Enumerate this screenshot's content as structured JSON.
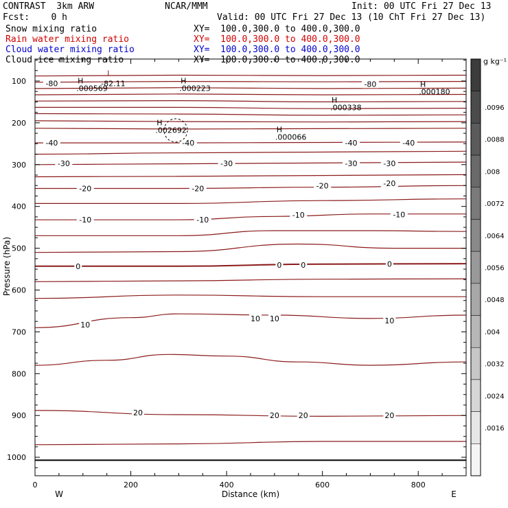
{
  "header": {
    "model": "CONTRAST  3km ARW",
    "center": "NCAR/MMM",
    "init": "Init: 00 UTC Fri 27 Dec 13",
    "fcst": "Fcst:    0 h",
    "valid": "Valid: 00 UTC Fri 27 Dec 13 (10 ChT Fri 27 Dec 13)",
    "fields": [
      {
        "name": "Snow mixing ratio",
        "xy": "XY=  100.0,300.0 to 400.0,300.0",
        "color": "#000000"
      },
      {
        "name": "Rain water mixing ratio",
        "xy": "XY=  100.0,300.0 to 400.0,300.0",
        "color": "#d00000"
      },
      {
        "name": "Cloud water mixing ratio",
        "xy": "XY=  100.0,300.0 to 400.0,300.0",
        "color": "#0000cc"
      },
      {
        "name": "Cloud ice mixing ratio",
        "xy": "XY=  100.0,300.0 to 400.0,300.0",
        "color": "#000000"
      }
    ]
  },
  "chart_data": {
    "type": "line",
    "xlabel": "Distance (km)",
    "ylabel": "Pressure (hPa)",
    "xlim": [
      0,
      900
    ],
    "ylim": [
      1050,
      50
    ],
    "xticks": [
      0,
      200,
      400,
      600,
      800
    ],
    "yticks": [
      100,
      200,
      300,
      400,
      500,
      600,
      700,
      800,
      900,
      1000
    ],
    "side_labels": {
      "left": "W",
      "right": "E"
    },
    "contour_color": "#8b1a1a",
    "colorbar": {
      "unit": "g kg⁻¹",
      "labels": [
        ".0096",
        ".0088",
        ".008",
        ".0072",
        ".0064",
        ".0056",
        ".0048",
        ".004",
        ".0032",
        ".0024",
        ".0016"
      ]
    },
    "contours": [
      {
        "pts": [
          [
            0,
            88
          ],
          [
            300,
            86
          ],
          [
            600,
            87
          ],
          [
            900,
            86
          ]
        ]
      },
      {
        "pts": [
          [
            0,
            103
          ],
          [
            300,
            101
          ],
          [
            600,
            102
          ],
          [
            900,
            101
          ]
        ]
      },
      {
        "pts": [
          [
            0,
            118
          ],
          [
            300,
            116
          ],
          [
            600,
            118
          ],
          [
            900,
            117
          ]
        ]
      },
      {
        "pts": [
          [
            0,
            133
          ],
          [
            300,
            131
          ],
          [
            600,
            133
          ],
          [
            900,
            132
          ]
        ]
      },
      {
        "pts": [
          [
            0,
            148
          ],
          [
            300,
            147
          ],
          [
            600,
            150
          ],
          [
            900,
            149
          ]
        ]
      },
      {
        "pts": [
          [
            0,
            163
          ],
          [
            300,
            163
          ],
          [
            600,
            166
          ],
          [
            900,
            165
          ]
        ]
      },
      {
        "pts": [
          [
            0,
            178
          ],
          [
            300,
            179
          ],
          [
            600,
            182
          ],
          [
            900,
            181
          ]
        ]
      },
      {
        "pts": [
          [
            0,
            195
          ],
          [
            300,
            197
          ],
          [
            600,
            198
          ],
          [
            900,
            197
          ]
        ]
      },
      {
        "pts": [
          [
            0,
            213
          ],
          [
            300,
            215
          ],
          [
            600,
            214
          ],
          [
            900,
            213
          ]
        ]
      },
      {
        "pts": [
          [
            0,
            248
          ],
          [
            300,
            248
          ],
          [
            600,
            247
          ],
          [
            900,
            246
          ]
        ]
      },
      {
        "pts": [
          [
            0,
            275
          ],
          [
            300,
            272
          ],
          [
            600,
            270
          ],
          [
            900,
            268
          ]
        ]
      },
      {
        "pts": [
          [
            0,
            300
          ],
          [
            300,
            298
          ],
          [
            600,
            296
          ],
          [
            900,
            294
          ]
        ]
      },
      {
        "pts": [
          [
            0,
            329
          ],
          [
            300,
            328
          ],
          [
            600,
            326
          ],
          [
            900,
            324
          ]
        ]
      },
      {
        "pts": [
          [
            0,
            357
          ],
          [
            300,
            357
          ],
          [
            600,
            354
          ],
          [
            900,
            350
          ]
        ]
      },
      {
        "pts": [
          [
            0,
            393
          ],
          [
            300,
            393
          ],
          [
            600,
            386
          ],
          [
            900,
            382
          ]
        ]
      },
      {
        "pts": [
          [
            0,
            432
          ],
          [
            300,
            432
          ],
          [
            500,
            424
          ],
          [
            700,
            418
          ],
          [
            900,
            418
          ]
        ]
      },
      {
        "pts": [
          [
            0,
            470
          ],
          [
            300,
            470
          ],
          [
            500,
            458
          ],
          [
            700,
            458
          ],
          [
            900,
            460
          ]
        ]
      },
      {
        "pts": [
          [
            0,
            510
          ],
          [
            300,
            508
          ],
          [
            550,
            490
          ],
          [
            750,
            500
          ],
          [
            900,
            500
          ]
        ]
      },
      {
        "pts": [
          [
            0,
            543
          ],
          [
            300,
            543
          ],
          [
            600,
            538
          ],
          [
            900,
            537
          ]
        ],
        "bold": true
      },
      {
        "pts": [
          [
            0,
            580
          ],
          [
            300,
            578
          ],
          [
            600,
            574
          ],
          [
            900,
            573
          ]
        ]
      },
      {
        "pts": [
          [
            0,
            620
          ],
          [
            300,
            612
          ],
          [
            600,
            616
          ],
          [
            900,
            616
          ]
        ]
      },
      {
        "pts": [
          [
            0,
            690
          ],
          [
            200,
            666
          ],
          [
            300,
            657
          ],
          [
            500,
            660
          ],
          [
            700,
            668
          ],
          [
            900,
            660
          ]
        ]
      },
      {
        "pts": [
          [
            0,
            780
          ],
          [
            150,
            768
          ],
          [
            280,
            754
          ],
          [
            400,
            758
          ],
          [
            550,
            772
          ],
          [
            700,
            780
          ],
          [
            900,
            772
          ]
        ]
      },
      {
        "pts": [
          [
            0,
            888
          ],
          [
            300,
            898
          ],
          [
            600,
            902
          ],
          [
            900,
            900
          ]
        ]
      },
      {
        "pts": [
          [
            0,
            970
          ],
          [
            300,
            968
          ],
          [
            600,
            962
          ],
          [
            900,
            962
          ]
        ]
      },
      {
        "pts": [
          [
            0,
            1007
          ],
          [
            900,
            1007
          ]
        ],
        "bold": true,
        "black": true
      }
    ],
    "contour_labels": [
      {
        "x": 35,
        "p": 106,
        "text": "-80"
      },
      {
        "x": 700,
        "p": 107,
        "text": "-80"
      },
      {
        "x": 35,
        "p": 248,
        "text": "-40"
      },
      {
        "x": 320,
        "p": 248,
        "text": "-40"
      },
      {
        "x": 660,
        "p": 248,
        "text": "-40"
      },
      {
        "x": 780,
        "p": 248,
        "text": "-40"
      },
      {
        "x": 60,
        "p": 297,
        "text": "-30"
      },
      {
        "x": 400,
        "p": 297,
        "text": "-30"
      },
      {
        "x": 660,
        "p": 297,
        "text": "-30"
      },
      {
        "x": 740,
        "p": 297,
        "text": "-30"
      },
      {
        "x": 105,
        "p": 357,
        "text": "-20"
      },
      {
        "x": 340,
        "p": 357,
        "text": "-20"
      },
      {
        "x": 600,
        "p": 350,
        "text": "-20"
      },
      {
        "x": 740,
        "p": 345,
        "text": "-20"
      },
      {
        "x": 105,
        "p": 432,
        "text": "-10"
      },
      {
        "x": 350,
        "p": 432,
        "text": "-10"
      },
      {
        "x": 550,
        "p": 420,
        "text": "-10"
      },
      {
        "x": 760,
        "p": 419,
        "text": "-10"
      },
      {
        "x": 90,
        "p": 543,
        "text": "0"
      },
      {
        "x": 510,
        "p": 540,
        "text": "0"
      },
      {
        "x": 560,
        "p": 540,
        "text": "0"
      },
      {
        "x": 740,
        "p": 538,
        "text": "0"
      },
      {
        "x": 105,
        "p": 683,
        "text": "10"
      },
      {
        "x": 460,
        "p": 668,
        "text": "10"
      },
      {
        "x": 500,
        "p": 668,
        "text": "10"
      },
      {
        "x": 740,
        "p": 673,
        "text": "10"
      },
      {
        "x": 215,
        "p": 893,
        "text": "20"
      },
      {
        "x": 500,
        "p": 900,
        "text": "20"
      },
      {
        "x": 560,
        "p": 900,
        "text": "20"
      },
      {
        "x": 740,
        "p": 900,
        "text": "20"
      }
    ],
    "extrema": [
      {
        "x": 155,
        "p": 88,
        "mark": "L",
        "value": "-82.11",
        "color": "#8b1a1a"
      },
      {
        "x": 95,
        "p": 106,
        "mark": "H",
        "value": ".000569"
      },
      {
        "x": 310,
        "p": 106,
        "mark": "H",
        "value": ".000223"
      },
      {
        "x": 810,
        "p": 114,
        "mark": "H",
        "value": ".000180"
      },
      {
        "x": 625,
        "p": 152,
        "mark": "H",
        "value": ".000338"
      },
      {
        "x": 260,
        "p": 206,
        "mark": "H",
        "value": ".002692"
      },
      {
        "x": 510,
        "p": 222,
        "mark": "H",
        "value": ".000066"
      }
    ]
  }
}
